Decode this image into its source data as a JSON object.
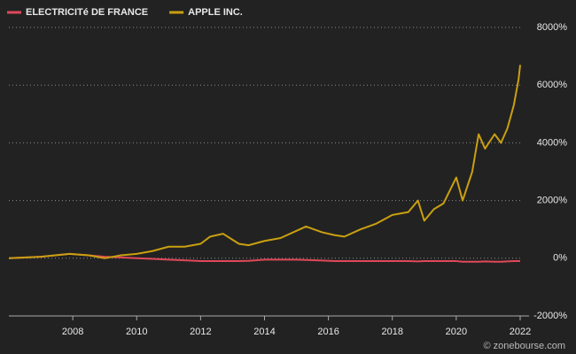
{
  "chart_data": {
    "type": "line",
    "source": "© zonebourse.com",
    "x": [
      2006,
      2007,
      2007.9,
      2008.5,
      2009,
      2009.5,
      2010,
      2010.5,
      2011,
      2011.5,
      2012,
      2012.3,
      2012.7,
      2013.2,
      2013.5,
      2014,
      2014.5,
      2015,
      2015.3,
      2015.8,
      2016.2,
      2016.5,
      2017,
      2017.5,
      2018,
      2018.5,
      2018.8,
      2019,
      2019.3,
      2019.6,
      2020,
      2020.2,
      2020.5,
      2020.7,
      2020.9,
      2021.2,
      2021.4,
      2021.6,
      2021.8,
      2021.95,
      2022
    ],
    "series": [
      {
        "name": "ELECTRICITé DE FRANCE",
        "color": "#e0485a",
        "values": [
          0,
          50,
          150,
          100,
          50,
          30,
          0,
          -20,
          -50,
          -70,
          -100,
          -100,
          -100,
          -100,
          -90,
          -50,
          -50,
          -50,
          -60,
          -80,
          -100,
          -100,
          -100,
          -100,
          -100,
          -100,
          -110,
          -100,
          -100,
          -100,
          -100,
          -120,
          -120,
          -120,
          -110,
          -120,
          -120,
          -110,
          -100,
          -100,
          -100
        ]
      },
      {
        "name": "APPLE INC.",
        "color": "#c9a010",
        "values": [
          0,
          50,
          150,
          100,
          0,
          100,
          150,
          250,
          400,
          400,
          500,
          750,
          850,
          500,
          450,
          600,
          700,
          950,
          1100,
          900,
          800,
          750,
          1000,
          1200,
          1500,
          1600,
          2000,
          1300,
          1700,
          1900,
          2800,
          2000,
          3000,
          4300,
          3800,
          4300,
          4000,
          4500,
          5300,
          6200,
          6700
        ]
      }
    ],
    "xlim": [
      2006,
      2022
    ],
    "xticks": [
      2008,
      2010,
      2012,
      2014,
      2016,
      2018,
      2020,
      2022
    ],
    "ylim": [
      -2000,
      8000
    ],
    "yticks": [
      {
        "value": -2000,
        "label": "-2000%"
      },
      {
        "value": 0,
        "label": "0%"
      },
      {
        "value": 2000,
        "label": "2000%"
      },
      {
        "value": 4000,
        "label": "4000%"
      },
      {
        "value": 6000,
        "label": "6000%"
      },
      {
        "value": 8000,
        "label": "8000%"
      }
    ],
    "grid": true,
    "legend": "top-left"
  }
}
